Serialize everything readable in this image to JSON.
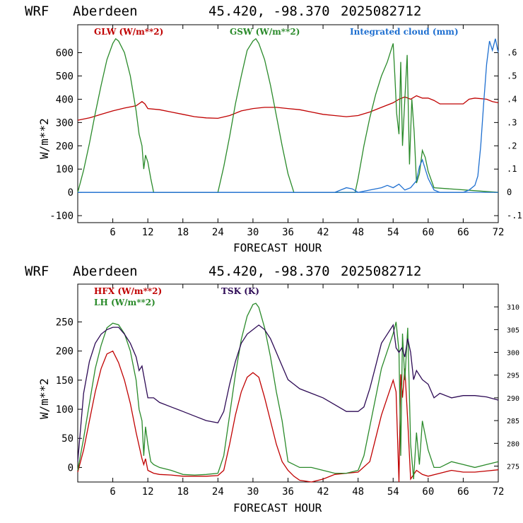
{
  "panels": [
    {
      "header": {
        "model": "WRF",
        "site": "Aberdeen",
        "coords": "45.420, -98.370",
        "run": "2025082712"
      },
      "ylabel": "W/m**2",
      "xlabel": "FORECAST HOUR",
      "xticks": [
        "6",
        "12",
        "18",
        "24",
        "30",
        "36",
        "42",
        "48",
        "54",
        "60",
        "66",
        "72"
      ],
      "yticks": [
        "-100",
        "0",
        "100",
        "200",
        "300",
        "400",
        "500",
        "600"
      ],
      "rticks": [
        ".6",
        ".5",
        ".4",
        ".3",
        ".2",
        ".1",
        "0",
        "-.1"
      ],
      "legend": [
        "GLW (W/m**2)",
        "GSW (W/m**2)",
        "Integrated cloud (mm)"
      ]
    },
    {
      "header": {
        "model": "WRF",
        "site": "Aberdeen",
        "coords": "45.420, -98.370",
        "run": "2025082712"
      },
      "ylabel": "W/m**2",
      "xlabel": "FORECAST HOUR",
      "xticks": [
        "6",
        "12",
        "18",
        "24",
        "30",
        "36",
        "42",
        "48",
        "54",
        "60",
        "66",
        "72"
      ],
      "yticks": [
        "0",
        "50",
        "100",
        "150",
        "200",
        "250"
      ],
      "rticks": [
        "310",
        "305",
        "300",
        "295",
        "290",
        "285",
        "280",
        "275"
      ],
      "legend": [
        "HFX (W/m**2)",
        "LH  (W/m**2)",
        "TSK (K)"
      ]
    }
  ],
  "chart_data": [
    {
      "type": "line",
      "title": "WRF Aberdeen 45.420, -98.370 2025082712",
      "xlabel": "FORECAST HOUR",
      "ylabel": "W/m**2",
      "xlim": [
        0,
        72
      ],
      "ylim": [
        -130,
        720
      ],
      "y2lim": [
        -0.13,
        0.72
      ],
      "series": [
        {
          "name": "GLW (W/m**2)",
          "color": "#c00000",
          "axis": "left",
          "x": [
            0,
            2,
            4,
            6,
            8,
            10,
            11,
            11.5,
            12,
            14,
            16,
            18,
            20,
            22,
            24,
            26,
            28,
            30,
            32,
            34,
            36,
            38,
            40,
            42,
            44,
            46,
            48,
            50,
            52,
            54,
            55,
            56,
            57,
            58,
            59,
            60,
            61,
            62,
            64,
            66,
            67,
            68,
            70,
            71,
            72
          ],
          "y": [
            310,
            320,
            335,
            350,
            362,
            372,
            390,
            380,
            360,
            355,
            345,
            335,
            325,
            320,
            318,
            330,
            350,
            360,
            365,
            365,
            360,
            355,
            345,
            335,
            330,
            325,
            330,
            345,
            365,
            385,
            400,
            410,
            400,
            415,
            405,
            405,
            395,
            380,
            380,
            380,
            400,
            405,
            400,
            390,
            385
          ]
        },
        {
          "name": "GSW (W/m**2)",
          "color": "#2a8a2a",
          "axis": "left",
          "x": [
            0,
            1,
            2,
            3,
            4,
            5,
            6,
            6.5,
            7,
            8,
            9,
            10,
            10.5,
            11,
            11.3,
            11.6,
            12,
            12.5,
            13,
            24,
            25,
            26,
            27,
            28,
            29,
            30,
            30.5,
            31,
            32,
            33,
            34,
            35,
            36,
            37,
            47.5,
            48,
            49,
            50,
            51,
            52,
            53,
            54,
            54.3,
            54.6,
            55,
            55.3,
            55.6,
            56,
            56.4,
            56.8,
            57.2,
            57.6,
            58,
            58.5,
            59,
            59.5,
            60,
            61,
            72
          ],
          "y": [
            0,
            95,
            210,
            340,
            460,
            570,
            640,
            660,
            650,
            600,
            500,
            350,
            250,
            200,
            100,
            160,
            130,
            60,
            0,
            0,
            110,
            240,
            380,
            500,
            610,
            650,
            660,
            640,
            570,
            460,
            330,
            200,
            80,
            0,
            0,
            60,
            200,
            320,
            420,
            500,
            560,
            640,
            500,
            340,
            250,
            560,
            200,
            400,
            590,
            120,
            400,
            260,
            40,
            80,
            180,
            150,
            90,
            20,
            0
          ]
        },
        {
          "name": "Integrated cloud (mm)",
          "color": "#1e6fd0",
          "axis": "right",
          "x": [
            0,
            44,
            45,
            46,
            47,
            48,
            50,
            52,
            53,
            54,
            55,
            56,
            57,
            58,
            58.5,
            59,
            60,
            61,
            62,
            66,
            67,
            68,
            68.5,
            69,
            69.5,
            70,
            70.5,
            71,
            71.5,
            72
          ],
          "y": [
            0,
            0,
            0.01,
            0.02,
            0.015,
            0,
            0.01,
            0.02,
            0.03,
            0.02,
            0.035,
            0.01,
            0.02,
            0.05,
            0.11,
            0.14,
            0.06,
            0.01,
            0,
            0,
            0.01,
            0.03,
            0.07,
            0.2,
            0.38,
            0.55,
            0.65,
            0.61,
            0.66,
            0.6
          ]
        }
      ]
    },
    {
      "type": "line",
      "title": "WRF Aberdeen 45.420, -98.370 2025082712",
      "xlabel": "FORECAST HOUR",
      "ylabel": "W/m**2",
      "xlim": [
        0,
        72
      ],
      "ylim": [
        -25,
        315
      ],
      "y2lim": [
        271.5,
        315
      ],
      "series": [
        {
          "name": "HFX (W/m**2)",
          "color": "#c00000",
          "axis": "left",
          "x": [
            0,
            1,
            2,
            3,
            4,
            5,
            6,
            7,
            8,
            9,
            10,
            11,
            11.3,
            11.6,
            12,
            13,
            14,
            16,
            18,
            20,
            22,
            24,
            25,
            26,
            27,
            28,
            29,
            30,
            31,
            32,
            33,
            34,
            35,
            36,
            37,
            38,
            40,
            42,
            44,
            46,
            48,
            50,
            51,
            52,
            53,
            54,
            54.5,
            55,
            55.3,
            55.6,
            56,
            56.5,
            57,
            58,
            59,
            60,
            62,
            64,
            66,
            68,
            70,
            72
          ],
          "y": [
            -8,
            30,
            80,
            130,
            170,
            195,
            200,
            180,
            150,
            110,
            60,
            15,
            5,
            15,
            -5,
            -10,
            -12,
            -13,
            -15,
            -15,
            -15,
            -14,
            -5,
            40,
            90,
            130,
            155,
            163,
            155,
            120,
            80,
            40,
            10,
            -5,
            -15,
            -22,
            -28,
            -20,
            -12,
            -10,
            -8,
            10,
            50,
            90,
            120,
            150,
            130,
            -25,
            160,
            120,
            170,
            80,
            -20,
            -5,
            -12,
            -15,
            -10,
            -5,
            -8,
            -8,
            -6,
            -4
          ]
        },
        {
          "name": "LH  (W/m**2)",
          "color": "#2a8a2a",
          "axis": "left",
          "x": [
            0,
            1,
            2,
            3,
            4,
            5,
            6,
            7,
            8,
            9,
            10,
            10.5,
            11,
            11.3,
            11.6,
            12,
            12.5,
            13,
            14,
            16,
            18,
            20,
            22,
            24,
            25,
            26,
            27,
            28,
            29,
            30,
            30.5,
            31,
            32,
            33,
            34,
            35,
            36,
            38,
            40,
            42,
            44,
            46,
            48,
            49,
            50,
            51,
            52,
            53,
            54,
            54.5,
            55,
            55.3,
            55.6,
            56,
            56.5,
            57,
            57.5,
            58,
            58.5,
            59,
            60,
            61,
            62,
            64,
            66,
            68,
            70,
            72
          ],
          "y": [
            -5,
            50,
            110,
            170,
            210,
            240,
            248,
            245,
            230,
            200,
            150,
            100,
            80,
            20,
            70,
            40,
            10,
            5,
            0,
            -5,
            -12,
            -13,
            -12,
            -10,
            20,
            90,
            160,
            220,
            260,
            280,
            282,
            275,
            240,
            190,
            130,
            80,
            10,
            0,
            0,
            -5,
            -10,
            -10,
            -5,
            20,
            70,
            120,
            170,
            200,
            230,
            250,
            200,
            20,
            230,
            150,
            240,
            40,
            -20,
            60,
            5,
            80,
            30,
            0,
            0,
            10,
            5,
            0,
            5,
            10
          ]
        },
        {
          "name": "TSK (K)",
          "color": "#2d0a55",
          "axis": "right",
          "x": [
            0,
            1,
            2,
            3,
            4,
            5,
            6,
            7,
            8,
            9,
            10,
            10.5,
            11,
            12,
            13,
            14,
            16,
            18,
            20,
            22,
            24,
            25,
            26,
            27,
            28,
            29,
            30,
            31,
            32,
            33,
            34,
            35,
            36,
            37,
            38,
            40,
            42,
            44,
            46,
            48,
            49,
            50,
            51,
            52,
            53,
            54,
            54.5,
            55,
            55.5,
            56,
            56.5,
            57,
            57.5,
            58,
            59,
            60,
            61,
            62,
            64,
            66,
            68,
            70,
            72
          ],
          "y": [
            276,
            291,
            298,
            302,
            304,
            305,
            305.5,
            305.5,
            304,
            302,
            299,
            296,
            297,
            290,
            290,
            289,
            288,
            287,
            286,
            285,
            284.5,
            287,
            293,
            298,
            302,
            304,
            305,
            306,
            305,
            303,
            300,
            297,
            294,
            293,
            292,
            291,
            290,
            288.5,
            287,
            287,
            288,
            292,
            297,
            302,
            304,
            306,
            301,
            300,
            301,
            299,
            303,
            300,
            294,
            296,
            294,
            293,
            290,
            291,
            290,
            290.5,
            290.5,
            290.2,
            289.5
          ]
        }
      ]
    }
  ]
}
